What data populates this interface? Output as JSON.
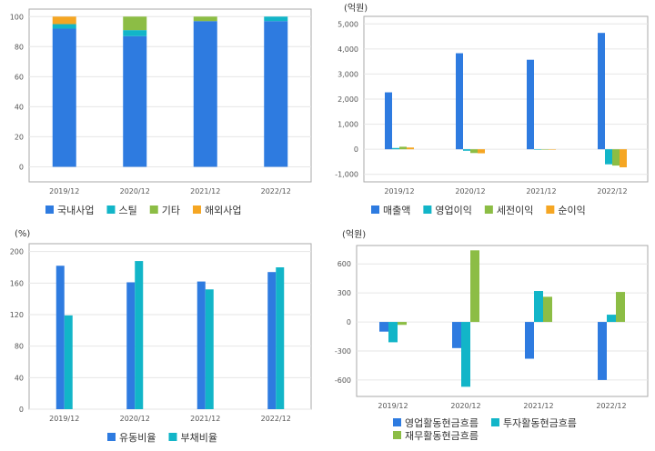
{
  "colors": {
    "blue": "#2e7be0",
    "teal": "#12b5c8",
    "green": "#8cbd45",
    "orange": "#f5a623",
    "grid": "#e6e6e6",
    "border": "#aaaaaa"
  },
  "chart_data": [
    {
      "type": "bar",
      "stacked": true,
      "title": "",
      "unit": "",
      "categories": [
        "2019/12",
        "2020/12",
        "2021/12",
        "2022/12"
      ],
      "ylim": [
        -10,
        105
      ],
      "yticks": [
        0,
        20,
        40,
        60,
        80,
        100
      ],
      "ytick_labels": [
        "0",
        "20",
        "40",
        "60",
        "80",
        "100"
      ],
      "series": [
        {
          "name": "국내사업",
          "color": "#2e7be0",
          "values": [
            92,
            87,
            97,
            97
          ]
        },
        {
          "name": "스틸",
          "color": "#12b5c8",
          "values": [
            3,
            4,
            0,
            3
          ]
        },
        {
          "name": "기타",
          "color": "#8cbd45",
          "values": [
            0,
            9,
            3,
            0
          ]
        },
        {
          "name": "해외사업",
          "color": "#f5a623",
          "values": [
            5,
            0,
            0,
            0
          ]
        }
      ],
      "grid": true,
      "legend": "bottom"
    },
    {
      "type": "bar",
      "title": "",
      "unit": "(억원)",
      "categories": [
        "2019/12",
        "2020/12",
        "2021/12",
        "2022/12"
      ],
      "ylim": [
        -1300,
        5300
      ],
      "yticks": [
        -1000,
        0,
        1000,
        2000,
        3000,
        4000,
        5000
      ],
      "ytick_labels": [
        "-1,000",
        "0",
        "1,000",
        "2,000",
        "3,000",
        "4,000",
        "5,000"
      ],
      "series": [
        {
          "name": "매출액",
          "color": "#2e7be0",
          "values": [
            2270,
            3830,
            3570,
            4640
          ]
        },
        {
          "name": "영업이익",
          "color": "#12b5c8",
          "values": [
            50,
            -60,
            -20,
            -600
          ]
        },
        {
          "name": "세전이익",
          "color": "#8cbd45",
          "values": [
            100,
            -150,
            0,
            -650
          ]
        },
        {
          "name": "순이익",
          "color": "#f5a623",
          "values": [
            70,
            -160,
            0,
            -720
          ]
        }
      ],
      "grid": true,
      "legend": "bottom"
    },
    {
      "type": "bar",
      "title": "",
      "unit": "(%)",
      "categories": [
        "2019/12",
        "2020/12",
        "2021/12",
        "2022/12"
      ],
      "ylim": [
        0,
        210
      ],
      "yticks": [
        0,
        40,
        80,
        120,
        160,
        200
      ],
      "ytick_labels": [
        "0",
        "40",
        "80",
        "120",
        "160",
        "200"
      ],
      "series": [
        {
          "name": "유동비율",
          "color": "#2e7be0",
          "values": [
            182,
            161,
            162,
            174
          ]
        },
        {
          "name": "부채비율",
          "color": "#12b5c8",
          "values": [
            119,
            188,
            152,
            180
          ]
        }
      ],
      "grid": true,
      "legend": "bottom"
    },
    {
      "type": "bar",
      "title": "",
      "unit": "(억원)",
      "categories": [
        "2019/12",
        "2020/12",
        "2021/12",
        "2022/12"
      ],
      "ylim": [
        -770,
        790
      ],
      "yticks": [
        -600,
        -300,
        0,
        300,
        600
      ],
      "ytick_labels": [
        "-600",
        "-300",
        "0",
        "300",
        "600"
      ],
      "series": [
        {
          "name": "영업활동현금흐름",
          "color": "#2e7be0",
          "values": [
            -100,
            -270,
            -380,
            -600
          ]
        },
        {
          "name": "투자활동현금흐름",
          "color": "#12b5c8",
          "values": [
            -210,
            -670,
            320,
            75
          ]
        },
        {
          "name": "재무활동현금흐름",
          "color": "#8cbd45",
          "values": [
            -30,
            740,
            260,
            310
          ]
        }
      ],
      "grid": true,
      "legend": "bottom"
    }
  ]
}
